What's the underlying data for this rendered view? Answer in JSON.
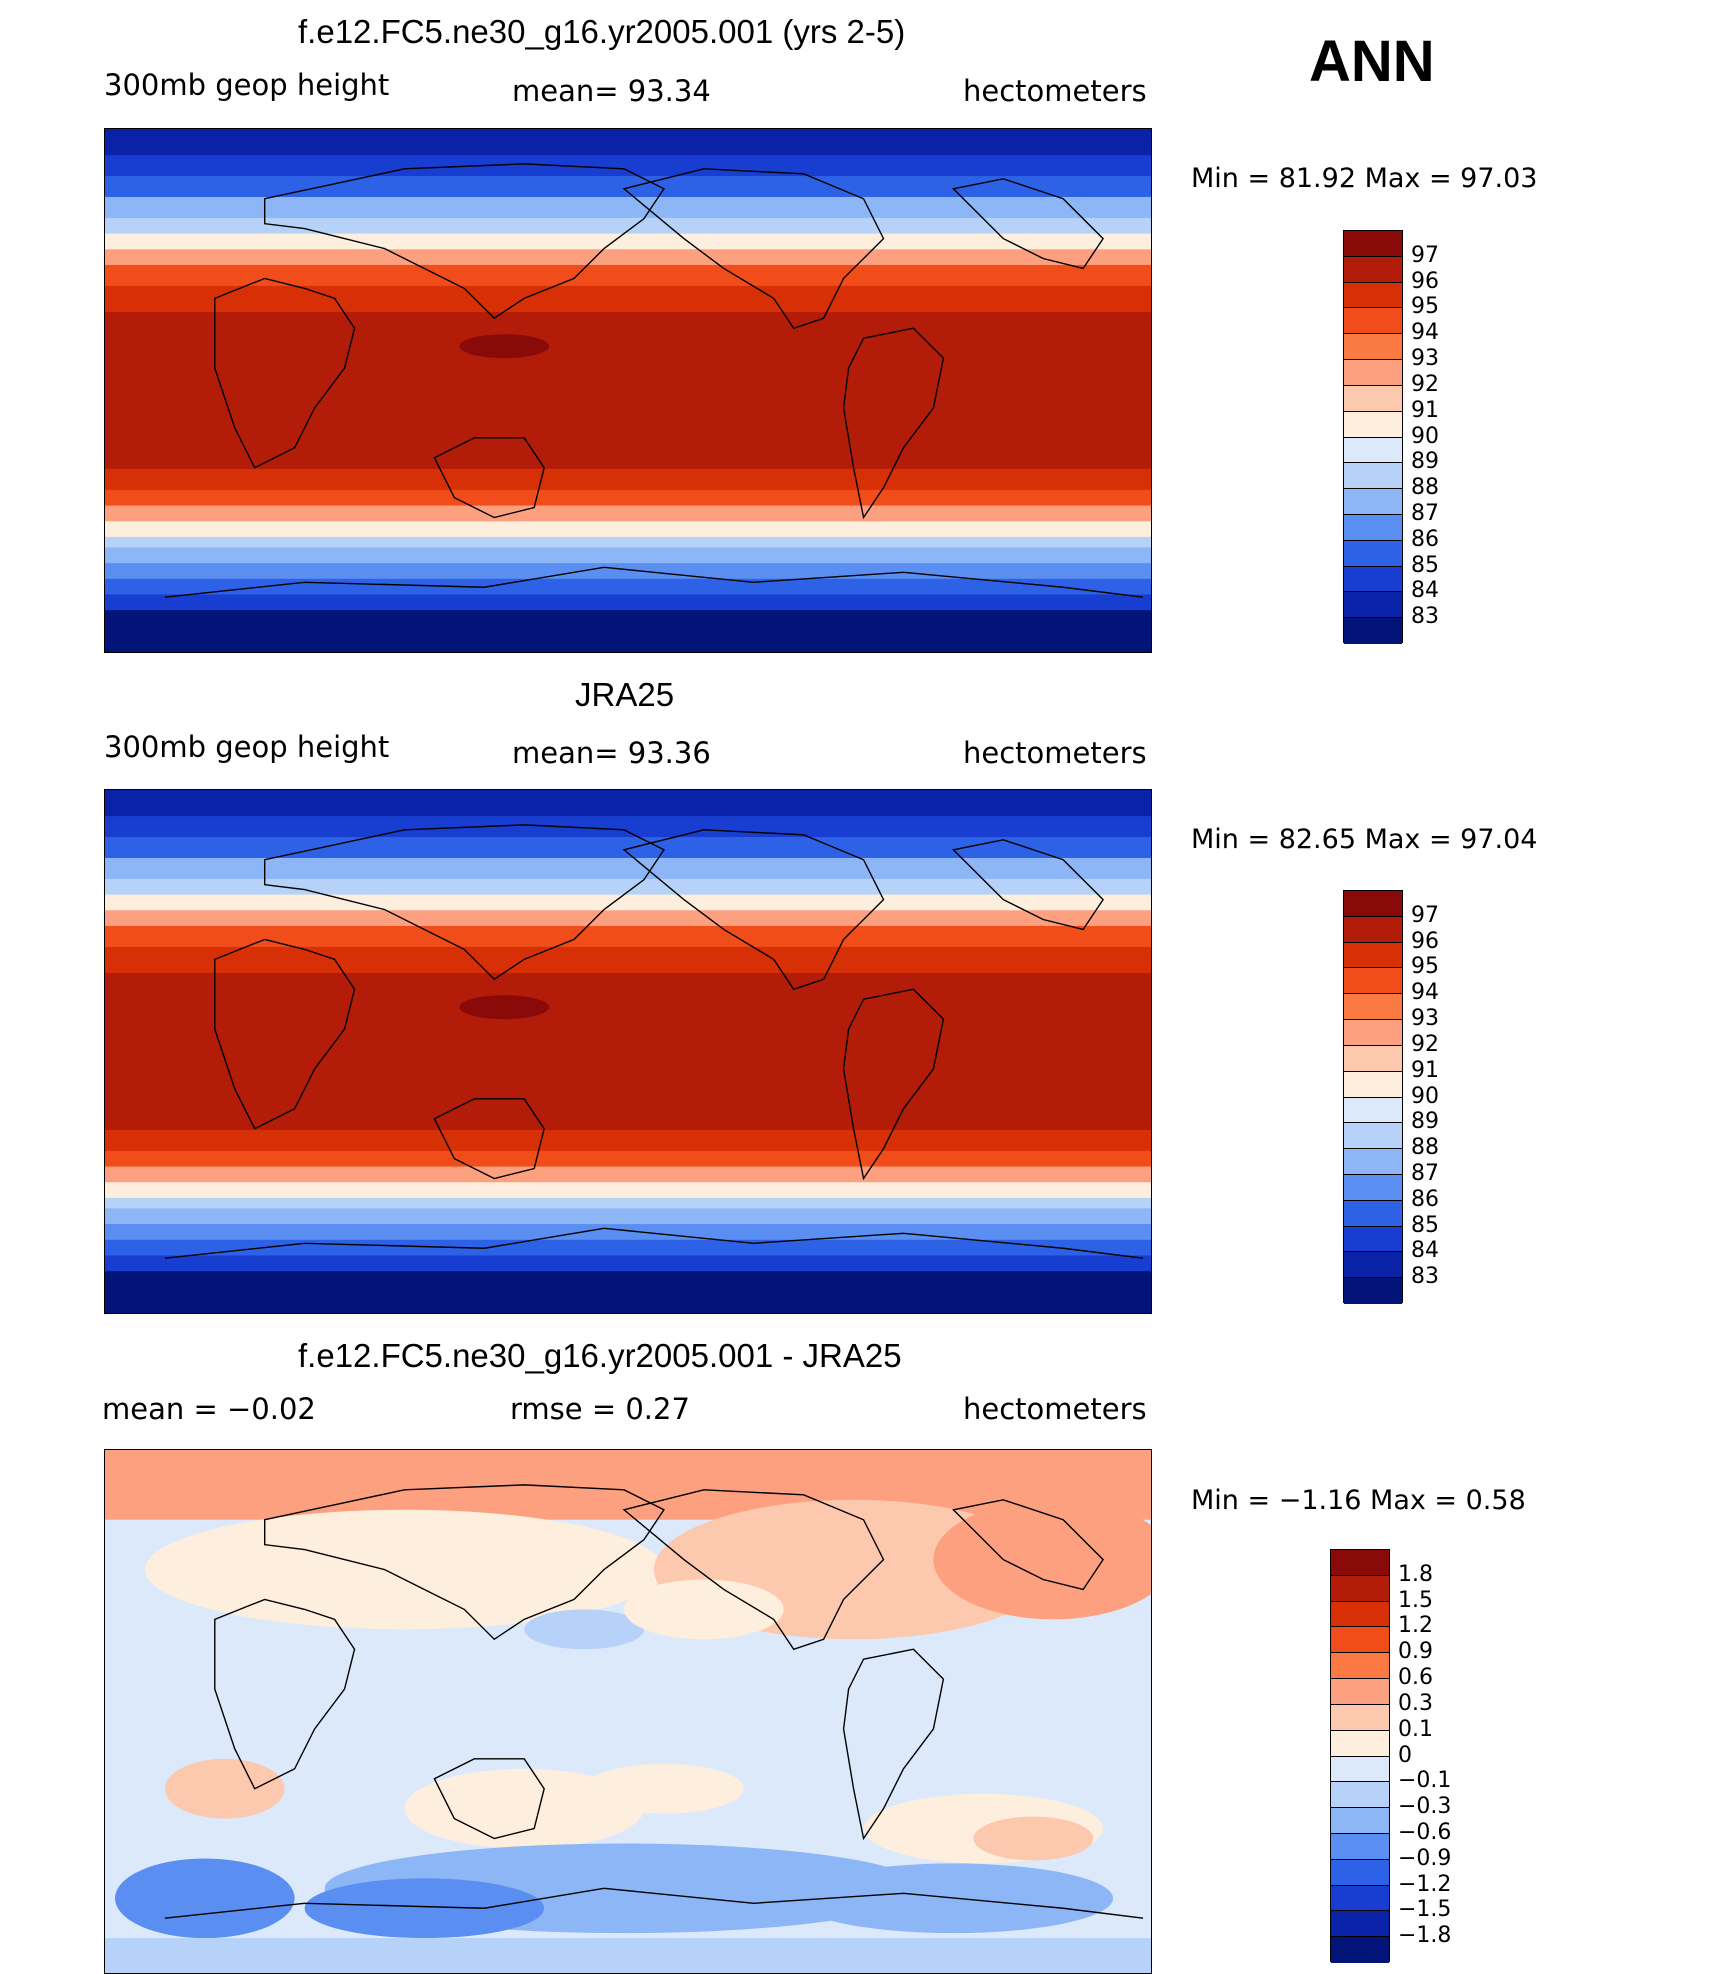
{
  "season": "ANN",
  "panels": [
    {
      "title": "f.e12.FC5.ne30_g16.yr2005.001 (yrs 2-5)",
      "left_label": "300mb geop height",
      "mid_label": "mean=   93.34",
      "right_label": "hectometers",
      "minmax": "Min =   81.92  Max =   97.03",
      "colorbar": {
        "labels": [
          "97",
          "96",
          "95",
          "94",
          "93",
          "92",
          "91",
          "90",
          "89",
          "88",
          "87",
          "86",
          "85",
          "84",
          "83"
        ],
        "colors": [
          "#8a0a0a",
          "#b21c08",
          "#d83006",
          "#f04d1a",
          "#fb7a44",
          "#fca080",
          "#fdc9ae",
          "#fdeedd",
          "#dce9fb",
          "#b6d2f9",
          "#8cb6f6",
          "#5a8ef1",
          "#2e62e6",
          "#173ed0",
          "#0a22a8",
          "#031479"
        ]
      }
    },
    {
      "title": "JRA25",
      "left_label": "300mb geop height",
      "mid_label": "mean=   93.36",
      "right_label": "hectometers",
      "minmax": "Min =   82.65  Max =   97.04",
      "colorbar": {
        "labels": [
          "97",
          "96",
          "95",
          "94",
          "93",
          "92",
          "91",
          "90",
          "89",
          "88",
          "87",
          "86",
          "85",
          "84",
          "83"
        ],
        "colors": [
          "#8a0a0a",
          "#b21c08",
          "#d83006",
          "#f04d1a",
          "#fb7a44",
          "#fca080",
          "#fdc9ae",
          "#fdeedd",
          "#dce9fb",
          "#b6d2f9",
          "#8cb6f6",
          "#5a8ef1",
          "#2e62e6",
          "#173ed0",
          "#0a22a8",
          "#031479"
        ]
      }
    },
    {
      "title": "f.e12.FC5.ne30_g16.yr2005.001 - JRA25",
      "left_label": "mean =   −0.02",
      "mid_label": "rmse =     0.27",
      "right_label": "hectometers",
      "minmax": "Min =   −1.16  Max =     0.58",
      "colorbar": {
        "labels": [
          "1.8",
          "1.5",
          "1.2",
          "0.9",
          "0.6",
          "0.3",
          "0.1",
          "0",
          "−0.1",
          "−0.3",
          "−0.6",
          "−0.9",
          "−1.2",
          "−1.5",
          "−1.8"
        ],
        "colors": [
          "#8a0a0a",
          "#b21c08",
          "#d83006",
          "#f04d1a",
          "#fb7a44",
          "#fca080",
          "#fdc9ae",
          "#fdeedd",
          "#dce9fb",
          "#b6d2f9",
          "#8cb6f6",
          "#5a8ef1",
          "#2e62e6",
          "#173ed0",
          "#0a22a8",
          "#031479"
        ]
      }
    }
  ]
}
